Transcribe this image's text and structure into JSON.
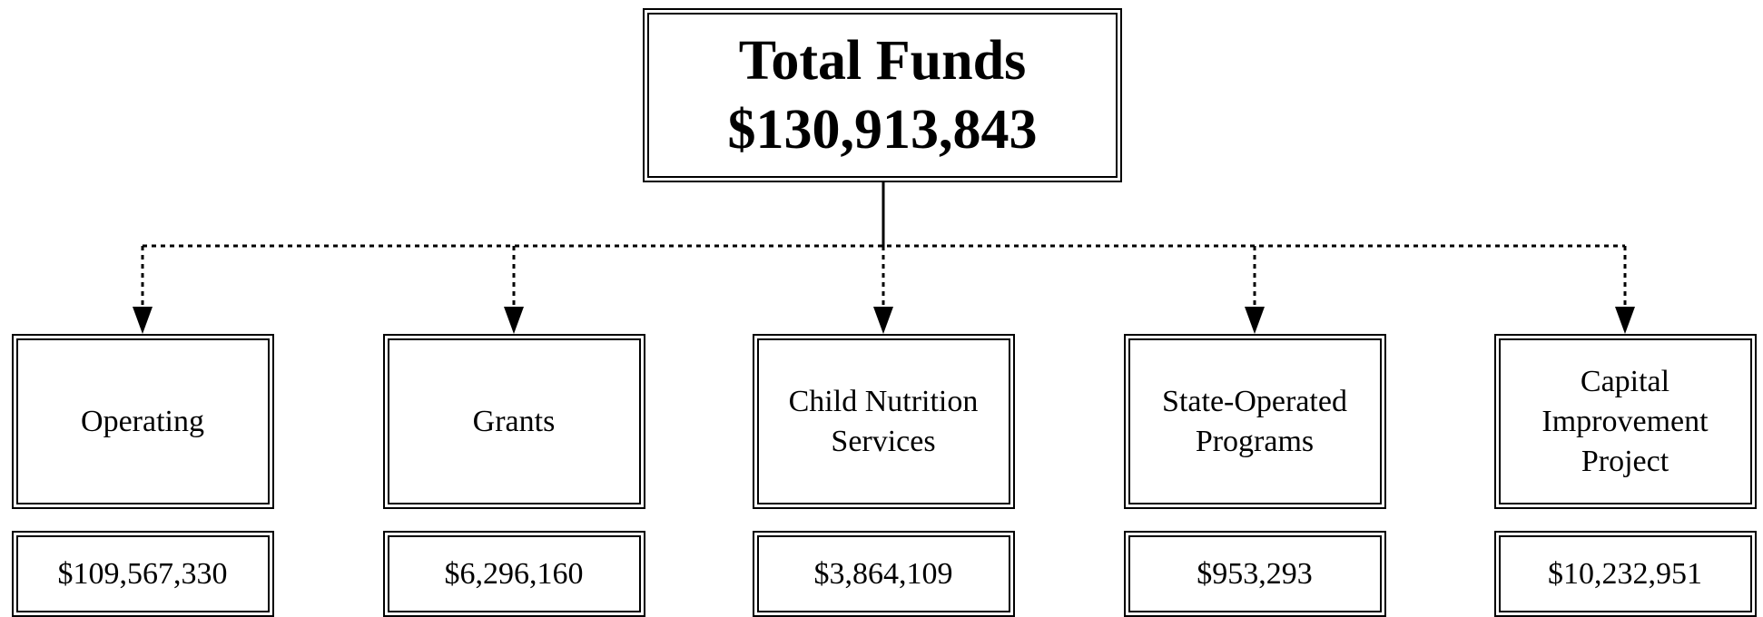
{
  "root": {
    "title": "Total Funds",
    "amount": "$130,913,843"
  },
  "children": [
    {
      "label_lines": [
        "Operating"
      ],
      "amount": "$109,567,330"
    },
    {
      "label_lines": [
        "Grants"
      ],
      "amount": "$6,296,160"
    },
    {
      "label_lines": [
        "Child Nutrition",
        "Services"
      ],
      "amount": "$3,864,109"
    },
    {
      "label_lines": [
        "State-Operated",
        "Programs"
      ],
      "amount": "$953,293"
    },
    {
      "label_lines": [
        "Capital",
        "Improvement",
        "Project"
      ],
      "amount": "$10,232,951"
    }
  ]
}
